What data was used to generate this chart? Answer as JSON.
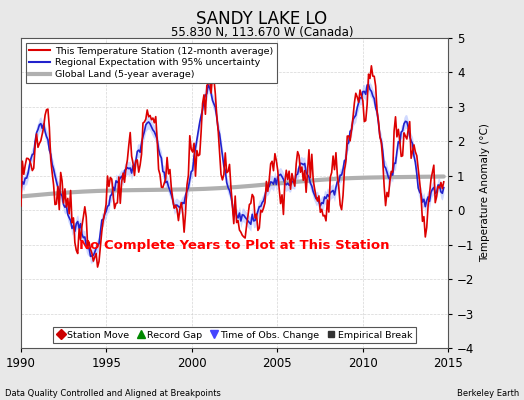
{
  "title": "SANDY LAKE LO",
  "subtitle": "55.830 N, 113.670 W (Canada)",
  "ylabel": "Temperature Anomaly (°C)",
  "xlabel_left": "Data Quality Controlled and Aligned at Breakpoints",
  "xlabel_right": "Berkeley Earth",
  "no_data_text": "No Complete Years to Plot at This Station",
  "xlim": [
    1990,
    2015
  ],
  "ylim": [
    -4,
    5
  ],
  "yticks": [
    -4,
    -3,
    -2,
    -1,
    0,
    1,
    2,
    3,
    4,
    5
  ],
  "xticks": [
    1990,
    1995,
    2000,
    2005,
    2010,
    2015
  ],
  "background_color": "#e8e8e8",
  "plot_bg_color": "#ffffff",
  "legend_line_items": [
    {
      "label": "This Temperature Station (12-month average)",
      "color": "#dd0000",
      "lw": 1.2
    },
    {
      "label": "Regional Expectation with 95% uncertainty",
      "color": "#2222cc",
      "lw": 1.2
    },
    {
      "label": "Global Land (5-year average)",
      "color": "#b0b0b0",
      "lw": 3
    }
  ],
  "marker_legend": [
    {
      "label": "Station Move",
      "marker": "D",
      "color": "#cc0000"
    },
    {
      "label": "Record Gap",
      "marker": "^",
      "color": "#008800"
    },
    {
      "label": "Time of Obs. Change",
      "marker": "v",
      "color": "#4444ff"
    },
    {
      "label": "Empirical Break",
      "marker": "s",
      "color": "#333333"
    }
  ],
  "uncertainty_color": "#aabbff",
  "uncertainty_alpha": 0.55
}
